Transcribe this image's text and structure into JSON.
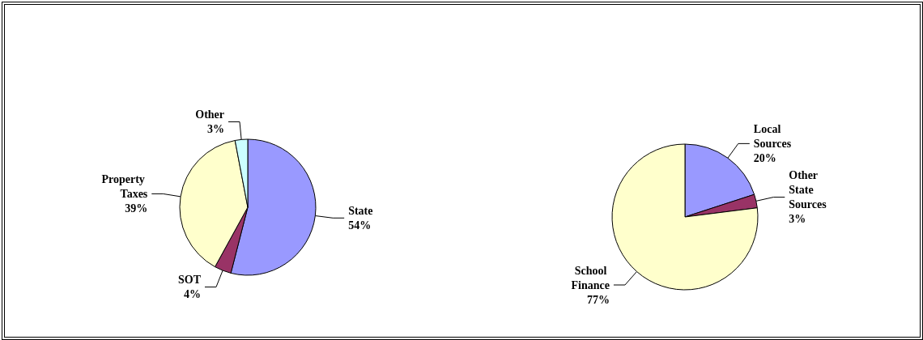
{
  "chart_data": [
    {
      "type": "pie",
      "categories": [
        "State",
        "SOT",
        "Property Taxes",
        "Other"
      ],
      "values": [
        54,
        4,
        39,
        3
      ],
      "value_labels": [
        "54%",
        "4%",
        "39%",
        "3%"
      ],
      "colors": [
        "#9999ff",
        "#993366",
        "#ffffcc",
        "#ccffff"
      ]
    },
    {
      "type": "pie",
      "categories": [
        "Local Sources",
        "Other State Sources",
        "School Finance"
      ],
      "values": [
        20,
        3,
        77
      ],
      "value_labels": [
        "20%",
        "3%",
        "77%"
      ],
      "colors": [
        "#9999ff",
        "#993366",
        "#ffffcc"
      ]
    }
  ]
}
